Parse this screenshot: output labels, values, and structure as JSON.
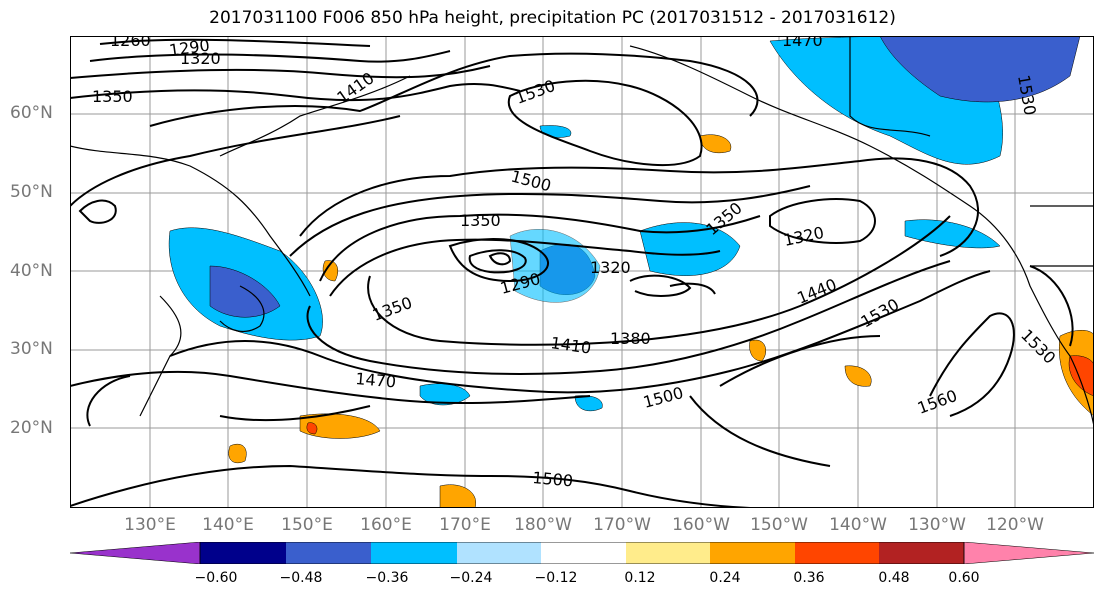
{
  "title": "2017031100 F006 850 hPa height, precipitation PC (2017031512 - 2017031612)",
  "axes": {
    "lat_labels": [
      "60°N",
      "50°N",
      "40°N",
      "30°N",
      "20°N"
    ],
    "lon_labels": [
      "130°E",
      "140°E",
      "150°E",
      "160°E",
      "170°E",
      "180°W",
      "170°W",
      "160°W",
      "150°W",
      "140°W",
      "130°W",
      "120°W"
    ]
  },
  "contour_labels": [
    "1260",
    "1290",
    "1320",
    "1350",
    "1410",
    "1530",
    "1470",
    "1530",
    "1350",
    "1500",
    "1350",
    "1320",
    "1320",
    "1290",
    "1350",
    "1440",
    "1530",
    "1410",
    "1380",
    "1470",
    "1500",
    "1560",
    "1500",
    "1530"
  ],
  "colorbar": {
    "colors": [
      "#9932cc",
      "#00008b",
      "#3a5fcd",
      "#00bfff",
      "#b0e2ff",
      "#ffffff",
      "#ffec8b",
      "#ffa500",
      "#ff4500",
      "#b22222",
      "#ff82ab"
    ],
    "ticks": [
      "−0.60",
      "−0.48",
      "−0.36",
      "−0.24",
      "−0.12",
      "0.12",
      "0.24",
      "0.36",
      "0.48",
      "0.60"
    ]
  }
}
